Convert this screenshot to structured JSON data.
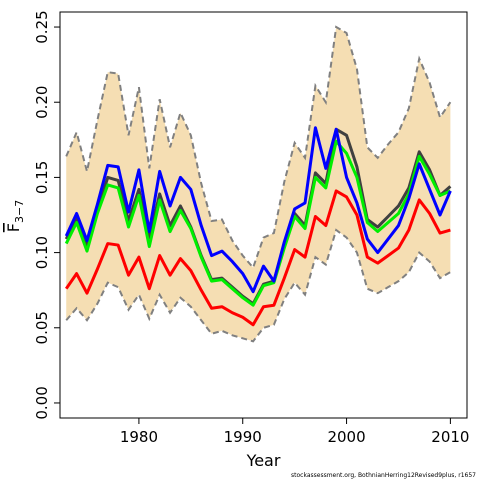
{
  "chart_data": {
    "type": "line",
    "title": "",
    "xlabel": "Year",
    "ylabel_main": "F",
    "ylabel_sub": "3−7",
    "xlim": [
      1972.4,
      2011.6
    ],
    "ylim": [
      -0.01,
      0.26
    ],
    "x_ticks": [
      1980,
      1990,
      2000,
      2010
    ],
    "y_ticks": [
      0.0,
      0.05,
      0.1,
      0.15,
      0.2,
      0.25
    ],
    "y_tick_labels": [
      "0.00",
      "0.05",
      "0.10",
      "0.15",
      "0.20",
      "0.25"
    ],
    "grid": false,
    "legend": "none",
    "x": [
      1973,
      1974,
      1975,
      1976,
      1977,
      1978,
      1979,
      1980,
      1981,
      1982,
      1983,
      1984,
      1985,
      1986,
      1987,
      1988,
      1989,
      1990,
      1991,
      1992,
      1993,
      1994,
      1995,
      1996,
      1997,
      1998,
      1999,
      2000,
      2001,
      2002,
      2003,
      2004,
      2005,
      2006,
      2007,
      2008,
      2009,
      2010
    ],
    "band": {
      "upper": [
        0.164,
        0.18,
        0.154,
        0.188,
        0.22,
        0.219,
        0.178,
        0.21,
        0.156,
        0.202,
        0.17,
        0.193,
        0.178,
        0.146,
        0.121,
        0.122,
        0.108,
        0.098,
        0.09,
        0.11,
        0.113,
        0.147,
        0.173,
        0.163,
        0.211,
        0.2,
        0.25,
        0.246,
        0.222,
        0.17,
        0.163,
        0.172,
        0.18,
        0.196,
        0.229,
        0.213,
        0.19,
        0.2
      ],
      "lower": [
        0.055,
        0.063,
        0.055,
        0.066,
        0.08,
        0.077,
        0.062,
        0.072,
        0.056,
        0.072,
        0.06,
        0.07,
        0.064,
        0.055,
        0.046,
        0.048,
        0.045,
        0.043,
        0.041,
        0.05,
        0.052,
        0.069,
        0.08,
        0.072,
        0.097,
        0.092,
        0.115,
        0.11,
        0.1,
        0.076,
        0.073,
        0.077,
        0.081,
        0.087,
        0.1,
        0.094,
        0.083,
        0.087
      ],
      "fill": "#f5deb3",
      "edge_color": "#808080"
    },
    "series": [
      {
        "color": "#404040",
        "values": [
          0.109,
          0.123,
          0.104,
          0.128,
          0.15,
          0.148,
          0.121,
          0.142,
          0.11,
          0.139,
          0.118,
          0.131,
          0.117,
          0.098,
          0.082,
          0.083,
          0.077,
          0.071,
          0.066,
          0.079,
          0.081,
          0.105,
          0.126,
          0.118,
          0.153,
          0.146,
          0.182,
          0.178,
          0.157,
          0.122,
          0.117,
          0.124,
          0.131,
          0.143,
          0.167,
          0.155,
          0.138,
          0.144
        ]
      },
      {
        "color": "#00ee00",
        "values": [
          0.106,
          0.12,
          0.101,
          0.126,
          0.145,
          0.143,
          0.117,
          0.138,
          0.104,
          0.135,
          0.114,
          0.128,
          0.116,
          0.097,
          0.081,
          0.082,
          0.076,
          0.07,
          0.065,
          0.078,
          0.08,
          0.103,
          0.124,
          0.116,
          0.15,
          0.143,
          0.174,
          0.166,
          0.15,
          0.12,
          0.114,
          0.12,
          0.126,
          0.139,
          0.164,
          0.152,
          0.138,
          0.141
        ]
      },
      {
        "color": "#0000ff",
        "values": [
          0.111,
          0.126,
          0.108,
          0.132,
          0.158,
          0.157,
          0.127,
          0.155,
          0.114,
          0.154,
          0.131,
          0.15,
          0.142,
          0.118,
          0.098,
          0.101,
          0.094,
          0.086,
          0.074,
          0.091,
          0.081,
          0.107,
          0.129,
          0.133,
          0.183,
          0.156,
          0.182,
          0.15,
          0.133,
          0.109,
          0.1,
          0.109,
          0.118,
          0.136,
          0.159,
          0.142,
          0.125,
          0.141
        ]
      },
      {
        "color": "#ff0000",
        "values": [
          0.076,
          0.086,
          0.073,
          0.089,
          0.106,
          0.105,
          0.085,
          0.097,
          0.076,
          0.098,
          0.085,
          0.096,
          0.088,
          0.075,
          0.063,
          0.064,
          0.06,
          0.057,
          0.052,
          0.064,
          0.065,
          0.083,
          0.102,
          0.097,
          0.124,
          0.118,
          0.141,
          0.137,
          0.125,
          0.097,
          0.093,
          0.098,
          0.103,
          0.115,
          0.135,
          0.126,
          0.113,
          0.115
        ]
      }
    ]
  },
  "footnote": "stockassessment.org, BothnianHerring12Revised9plus, r1657"
}
